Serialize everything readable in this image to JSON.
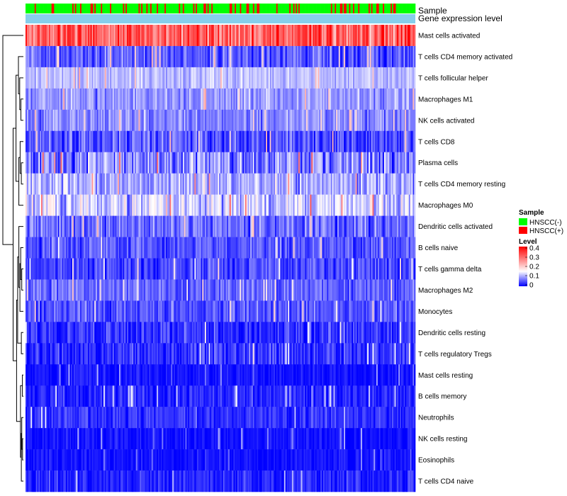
{
  "chart_data": {
    "type": "heatmap",
    "title": "",
    "columns_shown": 300,
    "annotation_tracks": {
      "sample_label": "Sample",
      "expression_label": "Gene expression level"
    },
    "rows": [
      {
        "label": "Mast cells activated",
        "mean": 0.3,
        "spread": 0.09
      },
      {
        "label": "T cells CD4 memory activated",
        "mean": 0.05,
        "spread": 0.05
      },
      {
        "label": "T cells follicular helper",
        "mean": 0.11,
        "spread": 0.03
      },
      {
        "label": "Macrophages M1",
        "mean": 0.09,
        "spread": 0.04
      },
      {
        "label": "NK cells activated",
        "mean": 0.08,
        "spread": 0.04
      },
      {
        "label": "T cells CD8",
        "mean": 0.05,
        "spread": 0.05
      },
      {
        "label": "Plasma cells",
        "mean": 0.08,
        "spread": 0.07
      },
      {
        "label": "T cells CD4 memory resting",
        "mean": 0.1,
        "spread": 0.05
      },
      {
        "label": "Macrophages M0",
        "mean": 0.12,
        "spread": 0.06
      },
      {
        "label": "Dendritic cells activated",
        "mean": 0.06,
        "spread": 0.05
      },
      {
        "label": "B cells naive",
        "mean": 0.05,
        "spread": 0.04
      },
      {
        "label": "T cells gamma delta",
        "mean": 0.04,
        "spread": 0.04
      },
      {
        "label": "Macrophages M2",
        "mean": 0.06,
        "spread": 0.04
      },
      {
        "label": "Monocytes",
        "mean": 0.05,
        "spread": 0.04
      },
      {
        "label": "Dendritic cells resting",
        "mean": 0.03,
        "spread": 0.04
      },
      {
        "label": "T cells regulatory  Tregs",
        "mean": 0.03,
        "spread": 0.04
      },
      {
        "label": "Mast cells resting",
        "mean": 0.01,
        "spread": 0.02
      },
      {
        "label": "B cells memory",
        "mean": 0.02,
        "spread": 0.03
      },
      {
        "label": "Neutrophils",
        "mean": 0.03,
        "spread": 0.03
      },
      {
        "label": "NK cells resting",
        "mean": 0.01,
        "spread": 0.02
      },
      {
        "label": "Eosinophils",
        "mean": 0.01,
        "spread": 0.02
      },
      {
        "label": "T cells CD4 naive",
        "mean": 0.02,
        "spread": 0.03
      }
    ],
    "color_scale": {
      "min": 0,
      "mid": 0.15,
      "max": 0.4,
      "low_color": "#0000ff",
      "mid_color": "#ffffff",
      "high_color": "#ff0000",
      "ticks": [
        {
          "value": 0.4,
          "label": "0.4"
        },
        {
          "value": 0.3,
          "label": "0.3"
        },
        {
          "value": 0.2,
          "label": "0.2"
        },
        {
          "value": 0.1,
          "label": "0.1"
        },
        {
          "value": 0,
          "label": "0"
        }
      ]
    },
    "legend": {
      "placement": "right",
      "sample_title": "Sample",
      "sample_groups": [
        {
          "label": "HNSCC(-)",
          "color": "#00ff00"
        },
        {
          "label": "HNSCC(+)",
          "color": "#ff0000"
        }
      ],
      "sample_fraction_positive": 0.2,
      "level_title": "Level",
      "expression_track_color": "#87ceeb"
    }
  }
}
